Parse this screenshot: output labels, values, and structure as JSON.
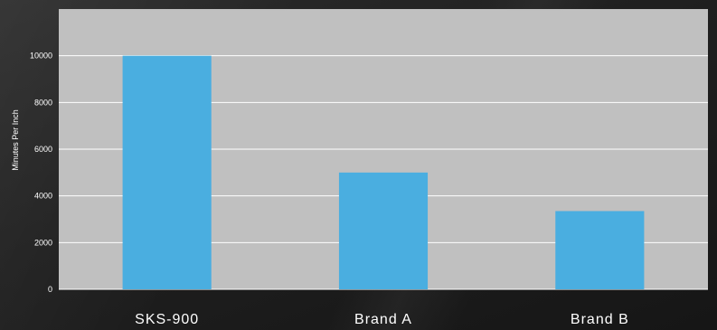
{
  "chart_data": {
    "type": "bar",
    "title": "",
    "xlabel": "",
    "ylabel": "Minutes Per Inch",
    "categories": [
      "SKS-900",
      "Brand A",
      "Brand B"
    ],
    "values": [
      10000,
      5000,
      3350
    ],
    "ylim": [
      0,
      12000
    ],
    "yticks": [
      0,
      2000,
      4000,
      6000,
      8000,
      10000
    ],
    "grid": true,
    "legend": "none",
    "colors": {
      "plot_background": "#c0c0c0",
      "bar": "#4aaee0",
      "gridline": "#ffffff",
      "text": "#ffffff"
    }
  }
}
